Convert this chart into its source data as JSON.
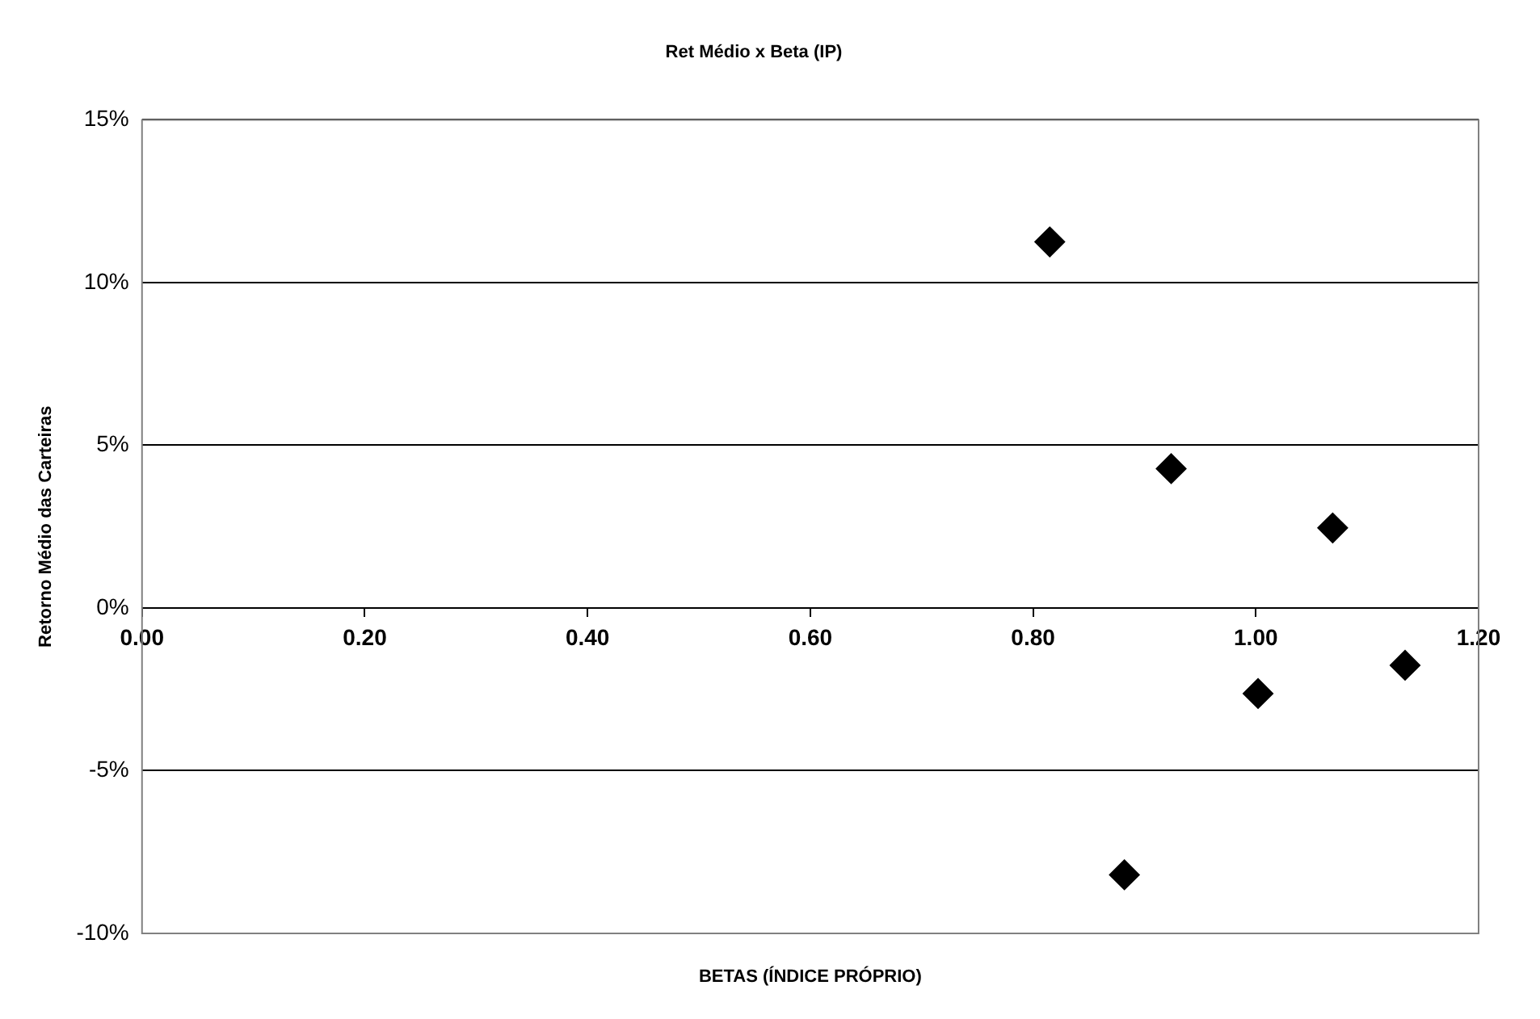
{
  "chart_data": {
    "type": "scatter",
    "title": "Ret Médio x Beta (IP)",
    "xlabel": "BETAS (ÍNDICE PRÓPRIO)",
    "ylabel": "Retorno Médio das Carteiras",
    "x": [
      0.815,
      0.924,
      1.069,
      1.002,
      1.134,
      0.882
    ],
    "series": [
      {
        "color": "#000000",
        "values": [
          11.25,
          4.28,
          2.46,
          -2.63,
          -1.76,
          -8.2
        ]
      }
    ],
    "xlim": [
      0,
      1.2
    ],
    "xticks": [
      {
        "value": 0,
        "label": "0.00"
      },
      {
        "value": 0.2,
        "label": "0.20"
      },
      {
        "value": 0.4,
        "label": "0.40"
      },
      {
        "value": 0.6,
        "label": "0.60"
      },
      {
        "value": 0.8,
        "label": "0.80"
      },
      {
        "value": 1,
        "label": "1.00"
      },
      {
        "value": 1.2,
        "label": "1.20"
      }
    ],
    "ylim": [
      -10,
      15
    ],
    "yticks": [
      {
        "value": -10,
        "label": "-10%"
      },
      {
        "value": -5,
        "label": "-5%"
      },
      {
        "value": 0,
        "label": "0%"
      },
      {
        "value": 5,
        "label": "5%"
      },
      {
        "value": 10,
        "label": "10%"
      },
      {
        "value": 15,
        "label": "15%"
      }
    ],
    "grid": "y",
    "legend": false,
    "marker": "diamond"
  }
}
